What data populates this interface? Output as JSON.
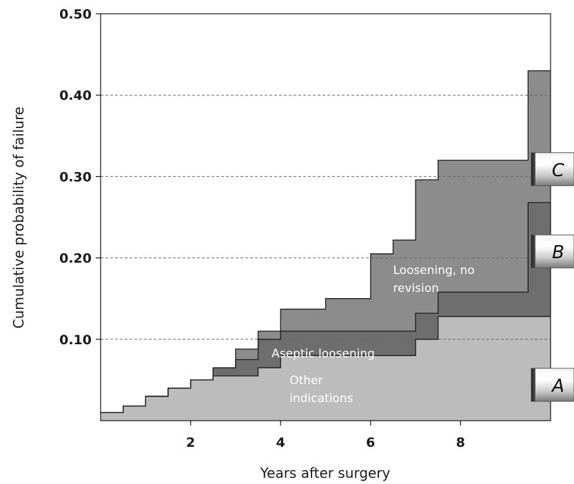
{
  "chart_data": {
    "type": "area",
    "subtype": "stacked step (cumulative incidence)",
    "xlabel": "Years after surgery",
    "ylabel": "Cumulative probability of failure",
    "xlim": [
      0,
      10
    ],
    "ylim": [
      0,
      0.5
    ],
    "x_ticks": [
      {
        "value": 2,
        "label": "2"
      },
      {
        "value": 4,
        "label": "4"
      },
      {
        "value": 6,
        "label": "6"
      },
      {
        "value": 8,
        "label": "8"
      }
    ],
    "y_ticks": [
      {
        "value": 0.1,
        "label": "0.10"
      },
      {
        "value": 0.2,
        "label": "0.20"
      },
      {
        "value": 0.3,
        "label": "0.30"
      },
      {
        "value": 0.4,
        "label": "0.40"
      },
      {
        "value": 0.5,
        "label": "0.50"
      }
    ],
    "grid": {
      "horizontal": true,
      "style": "dashed"
    },
    "series": [
      {
        "label": "Other indications",
        "tab": "A",
        "color": "#bcbcbc",
        "label_lines": [
          "Other",
          "indications"
        ],
        "label_anchor": [
          4.2,
          0.045
        ],
        "steps": [
          [
            0,
            0.01
          ],
          [
            0.5,
            0.018
          ],
          [
            1,
            0.03
          ],
          [
            1.5,
            0.04
          ],
          [
            2,
            0.05
          ],
          [
            2.5,
            0.055
          ],
          [
            3,
            0.055
          ],
          [
            3.5,
            0.065
          ],
          [
            4,
            0.08
          ],
          [
            5,
            0.08
          ],
          [
            6,
            0.08
          ],
          [
            7,
            0.1
          ],
          [
            7.5,
            0.128
          ],
          [
            9.5,
            0.128
          ],
          [
            10,
            0.128
          ]
        ]
      },
      {
        "label": "Aseptic loosening",
        "tab": "B",
        "color": "#6e6e6e",
        "label_lines": [
          "Aseptic loosening"
        ],
        "label_anchor": [
          3.8,
          0.078
        ],
        "steps": [
          [
            0,
            0.01
          ],
          [
            0.5,
            0.018
          ],
          [
            1,
            0.03
          ],
          [
            1.5,
            0.04
          ],
          [
            2,
            0.05
          ],
          [
            2.5,
            0.065
          ],
          [
            3,
            0.075
          ],
          [
            3.5,
            0.1
          ],
          [
            4,
            0.11
          ],
          [
            6,
            0.11
          ],
          [
            6.5,
            0.11
          ],
          [
            7,
            0.132
          ],
          [
            7.5,
            0.158
          ],
          [
            9.5,
            0.268
          ],
          [
            10,
            0.268
          ]
        ]
      },
      {
        "label": "Loosening, no revision",
        "tab": "C",
        "color": "#8c8c8c",
        "label_lines": [
          "Loosening, no",
          "revision"
        ],
        "label_anchor": [
          6.5,
          0.18
        ],
        "steps": [
          [
            0,
            0.01
          ],
          [
            0.5,
            0.018
          ],
          [
            1,
            0.03
          ],
          [
            1.5,
            0.04
          ],
          [
            2,
            0.05
          ],
          [
            2.5,
            0.065
          ],
          [
            3,
            0.088
          ],
          [
            3.5,
            0.11
          ],
          [
            4,
            0.137
          ],
          [
            5,
            0.15
          ],
          [
            6,
            0.205
          ],
          [
            6.5,
            0.222
          ],
          [
            7,
            0.296
          ],
          [
            7.5,
            0.32
          ],
          [
            9.5,
            0.43
          ],
          [
            10,
            0.43
          ]
        ]
      }
    ]
  }
}
